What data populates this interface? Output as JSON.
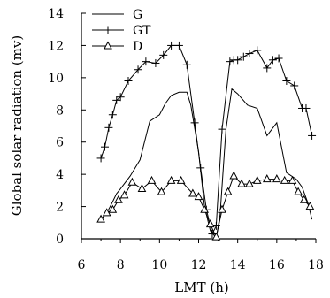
{
  "chart_data": {
    "type": "line",
    "xlabel": "LMT (h)",
    "ylabel": "Global solar radiation (mv)",
    "xlim": [
      6,
      18
    ],
    "ylim": [
      0,
      14
    ],
    "xticks": [
      6,
      8,
      10,
      12,
      14,
      16,
      18
    ],
    "yticks": [
      0,
      2,
      4,
      6,
      8,
      10,
      12,
      14
    ],
    "grid": false,
    "legend_position": "top-left",
    "series": [
      {
        "name": "G",
        "marker": "none",
        "x": [
          7.0,
          7.3,
          7.6,
          7.8,
          8.0,
          8.5,
          9.0,
          9.5,
          10.0,
          10.3,
          10.6,
          11.0,
          11.4,
          11.6,
          12.0,
          12.3,
          12.6,
          12.9,
          13.1,
          13.4,
          13.7,
          14.0,
          14.5,
          15.0,
          15.5,
          16.0,
          16.5,
          17.0,
          17.3,
          17.6,
          17.8
        ],
        "y": [
          1.2,
          1.6,
          2.3,
          2.8,
          3.1,
          3.9,
          4.9,
          7.3,
          7.7,
          8.4,
          8.9,
          9.1,
          9.1,
          8.3,
          5.4,
          2.0,
          0.5,
          0.05,
          1.5,
          6.8,
          9.3,
          9.0,
          8.3,
          8.1,
          6.4,
          7.2,
          4.1,
          3.7,
          3.2,
          2.2,
          1.2
        ]
      },
      {
        "name": "GT",
        "marker": "plus",
        "x": [
          7.0,
          7.2,
          7.4,
          7.6,
          7.8,
          8.0,
          8.4,
          8.9,
          9.3,
          9.8,
          10.2,
          10.6,
          11.0,
          11.4,
          11.8,
          12.1,
          12.4,
          12.7,
          12.9,
          13.2,
          13.6,
          13.8,
          14.0,
          14.3,
          14.6,
          15.0,
          15.5,
          15.8,
          16.1,
          16.5,
          16.9,
          17.3,
          17.5,
          17.8
        ],
        "y": [
          5.0,
          5.7,
          6.9,
          7.7,
          8.6,
          8.8,
          9.8,
          10.5,
          11.0,
          10.9,
          11.4,
          12.0,
          12.0,
          10.8,
          7.2,
          4.4,
          1.8,
          0.3,
          0.8,
          6.8,
          11.0,
          11.1,
          11.1,
          11.3,
          11.5,
          11.7,
          10.6,
          11.1,
          11.2,
          9.8,
          9.5,
          8.1,
          8.1,
          6.4
        ]
      },
      {
        "name": "D",
        "marker": "triangle",
        "x": [
          7.0,
          7.3,
          7.6,
          7.9,
          8.2,
          8.6,
          9.1,
          9.6,
          10.1,
          10.6,
          11.1,
          11.7,
          12.0,
          12.3,
          12.6,
          12.9,
          13.2,
          13.5,
          13.8,
          14.2,
          14.6,
          15.0,
          15.5,
          16.0,
          16.4,
          16.8,
          17.1,
          17.4,
          17.7
        ],
        "y": [
          1.2,
          1.6,
          1.8,
          2.4,
          2.7,
          3.5,
          3.1,
          3.6,
          2.9,
          3.6,
          3.6,
          2.8,
          2.6,
          1.8,
          0.9,
          0.1,
          1.8,
          2.9,
          3.9,
          3.4,
          3.4,
          3.6,
          3.7,
          3.7,
          3.6,
          3.6,
          2.9,
          2.4,
          2.0
        ]
      }
    ]
  }
}
